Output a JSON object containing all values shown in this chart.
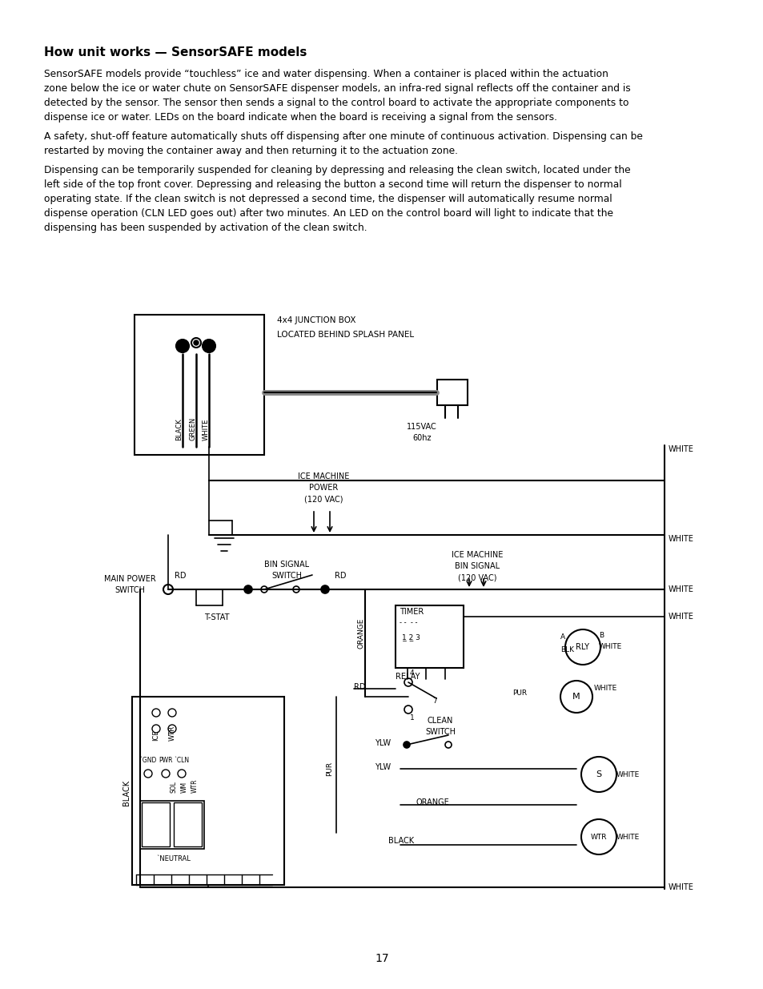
{
  "title": "How unit works — SensorSAFE models",
  "para1_lines": [
    "SensorSAFE models provide “touchless” ice and water dispensing. When a container is placed within the actuation",
    "zone below the ice or water chute on SensorSAFE dispenser models, an infra-red signal reflects off the container and is",
    "detected by the sensor. The sensor then sends a signal to the control board to activate the appropriate components to",
    "dispense ice or water. LEDs on the board indicate when the board is receiving a signal from the sensors."
  ],
  "para2_lines": [
    "A safety, shut-off feature automatically shuts off dispensing after one minute of continuous activation. Dispensing can be",
    "restarted by moving the container away and then returning it to the actuation zone."
  ],
  "para3_lines": [
    "Dispensing can be temporarily suspended for cleaning by depressing and releasing the clean switch, located under the",
    "left side of the top front cover. Depressing and releasing the button a second time will return the dispenser to normal",
    "operating state. If the clean switch is not depressed a second time, the dispenser will automatically resume normal",
    "dispense operation (CLN LED goes out) after two minutes. An LED on the control board will light to indicate that the",
    "dispensing has been suspended by activation of the clean switch."
  ],
  "page_number": "17",
  "bg_color": "#ffffff",
  "text_color": "#000000",
  "line_color": "#000000"
}
